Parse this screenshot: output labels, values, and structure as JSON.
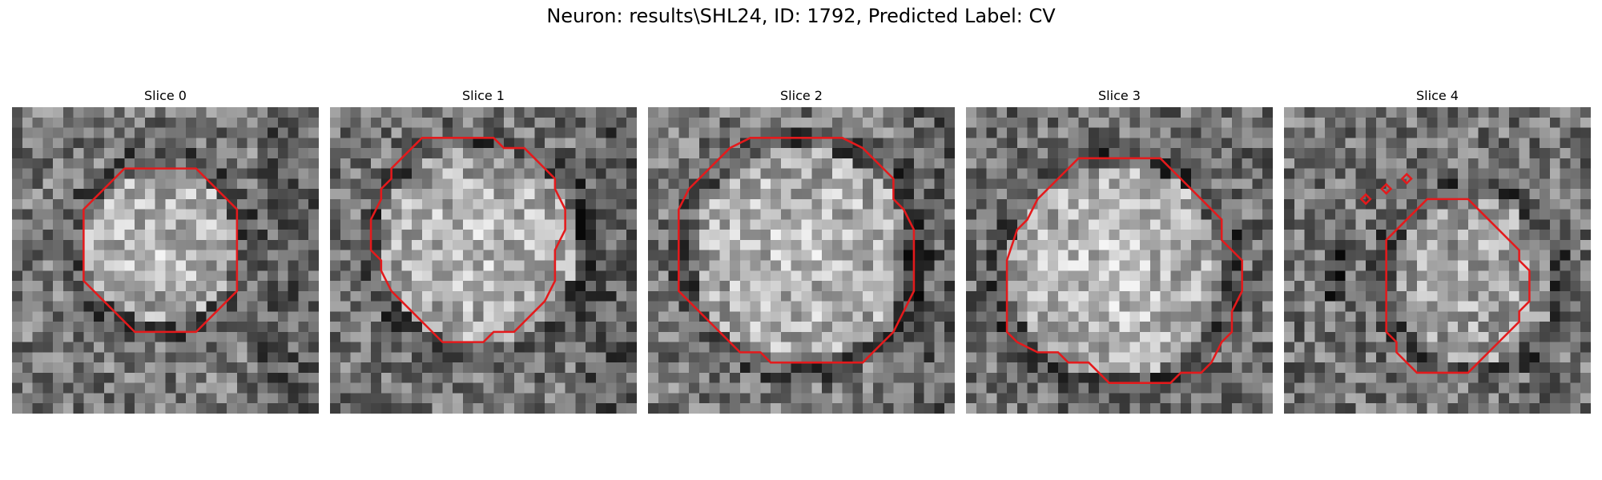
{
  "figure": {
    "title": "Neuron: results\\SHL24, ID: 1792, Predicted Label: CV"
  },
  "panels": [
    {
      "title": "Slice 0"
    },
    {
      "title": "Slice 1"
    },
    {
      "title": "Slice 2"
    },
    {
      "title": "Slice 3"
    },
    {
      "title": "Slice 4"
    }
  ],
  "colors": {
    "contour": "#e41a1c"
  },
  "image_grid": 30
}
